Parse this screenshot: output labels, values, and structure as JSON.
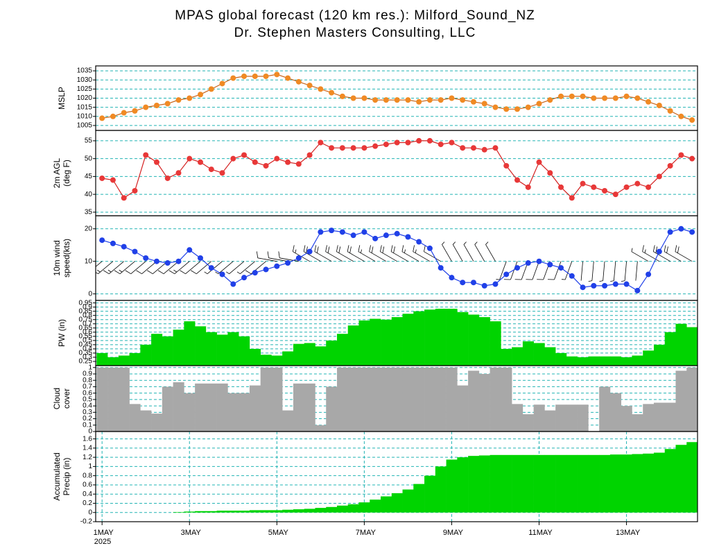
{
  "chart_data": {
    "title": "MPAS global forecast (120 km res.): Milford_Sound_NZ",
    "subtitle": "Dr. Stephen Masters Consulting, LLC",
    "year_label": "2025",
    "x": [
      0,
      6,
      12,
      18,
      24,
      30,
      36,
      42,
      48,
      54,
      60,
      66,
      72,
      78,
      84,
      90,
      96,
      102,
      108,
      114,
      120,
      126,
      132,
      138,
      144,
      150,
      156,
      162,
      168,
      174,
      180,
      186,
      192,
      198,
      204,
      210,
      216,
      222,
      228,
      234,
      240,
      246,
      252,
      258,
      264,
      270,
      276,
      282,
      288,
      294,
      300,
      306,
      312,
      318,
      324
    ],
    "xlim": [
      -3.5,
      327
    ],
    "xticks": [
      {
        "value": 0,
        "label": "1MAY"
      },
      {
        "value": 48,
        "label": "3MAY"
      },
      {
        "value": 96,
        "label": "5MAY"
      },
      {
        "value": 144,
        "label": "7MAY"
      },
      {
        "value": 192,
        "label": "9MAY"
      },
      {
        "value": 240,
        "label": "11MAY"
      },
      {
        "value": 288,
        "label": "13MAY"
      }
    ],
    "panels": [
      {
        "type": "line",
        "ylabel": [
          "MSLP"
        ],
        "color": "#f08a24",
        "line_color": "#c8641a",
        "ylim": [
          1002.3,
          1037.7
        ],
        "yticks": [
          1005,
          1010,
          1015,
          1020,
          1025,
          1030,
          1035
        ],
        "grid": true,
        "values": [
          1009,
          1010,
          1012,
          1013,
          1015,
          1016,
          1017,
          1019,
          1020,
          1022,
          1025,
          1028,
          1031,
          1032,
          1032,
          1032,
          1033,
          1031,
          1029,
          1027,
          1025,
          1023,
          1021,
          1020,
          1020,
          1019,
          1019,
          1019,
          1019,
          1018,
          1019,
          1019,
          1020,
          1019,
          1018,
          1017,
          1015,
          1014,
          1014,
          1015,
          1017,
          1019,
          1021,
          1021,
          1021,
          1020,
          1020,
          1020,
          1021,
          1020,
          1018,
          1016,
          1013,
          1010,
          1008
        ]
      },
      {
        "type": "line",
        "ylabel": [
          "2m AGL",
          "(deg F)"
        ],
        "color": "#e83838",
        "line_color": "#d42020",
        "ylim": [
          34,
          57.9
        ],
        "yticks": [
          35,
          40,
          45,
          50,
          55
        ],
        "grid": true,
        "values": [
          44.5,
          44,
          39,
          41,
          51,
          49,
          44.5,
          46,
          50,
          49,
          47,
          46,
          50,
          51,
          49,
          48,
          50,
          49,
          48.5,
          51,
          54.5,
          53,
          53,
          53,
          53,
          53.5,
          54,
          54.5,
          54.5,
          55,
          55,
          54,
          54.5,
          53,
          53,
          52.5,
          53,
          48,
          44,
          42,
          49,
          46,
          42,
          39,
          43,
          42,
          41,
          40,
          42,
          43,
          42,
          45,
          48,
          51,
          50
        ]
      },
      {
        "type": "wind",
        "ylabel": [
          "10m wind",
          "speed(kts)"
        ],
        "color": "#2040e8",
        "line_color": "#2040e8",
        "barb_color": "#000000",
        "barb_base": 10,
        "ylim": [
          -2,
          24
        ],
        "yticks": [
          0,
          10,
          20
        ],
        "grid": true,
        "values": [
          16.5,
          15.5,
          14.5,
          13,
          11,
          10,
          9.5,
          10,
          13.5,
          11,
          8,
          6,
          3,
          5,
          6.5,
          7.5,
          8.5,
          9.5,
          11,
          13,
          19,
          19.5,
          19,
          18,
          19,
          17,
          18,
          18.5,
          17.5,
          16,
          14,
          8,
          5,
          3.5,
          3.5,
          2.5,
          3,
          6,
          8,
          9.5,
          10,
          9,
          8,
          5.5,
          2,
          2.5,
          2.5,
          3,
          3,
          1,
          6,
          13,
          19,
          20,
          19
        ],
        "wind_direction": [
          230,
          230,
          230,
          230,
          230,
          230,
          230,
          230,
          230,
          230,
          230,
          230,
          230,
          230,
          230,
          230,
          280,
          280,
          280,
          300,
          300,
          300,
          300,
          300,
          300,
          300,
          300,
          300,
          300,
          300,
          300,
          300,
          330,
          330,
          330,
          330,
          330,
          200,
          200,
          200,
          200,
          200,
          200,
          200,
          185,
          185,
          185,
          185,
          185,
          185,
          300,
          300,
          300,
          300,
          300
        ]
      },
      {
        "type": "bar",
        "ylabel": [
          "PW (in)"
        ],
        "color": "#00d400",
        "ylim": [
          0.2,
          0.98
        ],
        "yticks": [
          0.25,
          0.3,
          0.35,
          0.4,
          0.45,
          0.5,
          0.55,
          0.6,
          0.65,
          0.7,
          0.75,
          0.8,
          0.85,
          0.9,
          0.95
        ],
        "grid": true,
        "values": [
          0.35,
          0.3,
          0.32,
          0.35,
          0.45,
          0.58,
          0.55,
          0.63,
          0.73,
          0.67,
          0.6,
          0.57,
          0.6,
          0.55,
          0.4,
          0.33,
          0.32,
          0.37,
          0.46,
          0.47,
          0.43,
          0.5,
          0.58,
          0.68,
          0.74,
          0.76,
          0.75,
          0.78,
          0.82,
          0.85,
          0.87,
          0.88,
          0.88,
          0.84,
          0.81,
          0.78,
          0.73,
          0.4,
          0.42,
          0.49,
          0.47,
          0.42,
          0.35,
          0.31,
          0.3,
          0.31,
          0.31,
          0.31,
          0.3,
          0.32,
          0.38,
          0.45,
          0.6,
          0.7,
          0.66
        ]
      },
      {
        "type": "bar",
        "ylabel": [
          "Cloud",
          "cover"
        ],
        "color": "#a8a8a8",
        "ylim": [
          0,
          1.03
        ],
        "yticks": [
          0,
          0.1,
          0.2,
          0.3,
          0.4,
          0.5,
          0.6,
          0.7,
          0.8,
          0.9,
          1
        ],
        "grid": true,
        "values": [
          1,
          1,
          1,
          0.43,
          0.33,
          0.28,
          0.7,
          0.77,
          0.6,
          0.75,
          0.75,
          0.75,
          0.6,
          0.6,
          0.72,
          1,
          1,
          0.33,
          0.75,
          0.75,
          0.1,
          0.7,
          1,
          1,
          1,
          1,
          1,
          1,
          1,
          1,
          1,
          1,
          1,
          0.72,
          0.95,
          0.9,
          1,
          1,
          0.43,
          0.27,
          0.42,
          0.33,
          0.42,
          0.42,
          0.42,
          0,
          0.7,
          0.6,
          0.4,
          0.27,
          0.43,
          0.45,
          0.45,
          0.95,
          1
        ]
      },
      {
        "type": "bar",
        "ylabel": [
          "Accumulated",
          "Precip (in)"
        ],
        "color": "#00d400",
        "ylim": [
          -0.2,
          1.76
        ],
        "yticks": [
          -0.2,
          0,
          0.2,
          0.4,
          0.6,
          0.8,
          1,
          1.2,
          1.4,
          1.6
        ],
        "grid": true,
        "xgrid": true,
        "values": [
          0,
          0,
          0,
          0,
          0,
          0,
          0,
          0.01,
          0.02,
          0.03,
          0.03,
          0.04,
          0.04,
          0.04,
          0.05,
          0.05,
          0.05,
          0.06,
          0.07,
          0.08,
          0.1,
          0.12,
          0.15,
          0.18,
          0.22,
          0.28,
          0.35,
          0.42,
          0.5,
          0.62,
          0.8,
          1.0,
          1.15,
          1.2,
          1.23,
          1.24,
          1.25,
          1.25,
          1.25,
          1.25,
          1.25,
          1.25,
          1.25,
          1.25,
          1.25,
          1.25,
          1.25,
          1.26,
          1.26,
          1.27,
          1.28,
          1.3,
          1.38,
          1.47,
          1.53
        ]
      }
    ]
  }
}
